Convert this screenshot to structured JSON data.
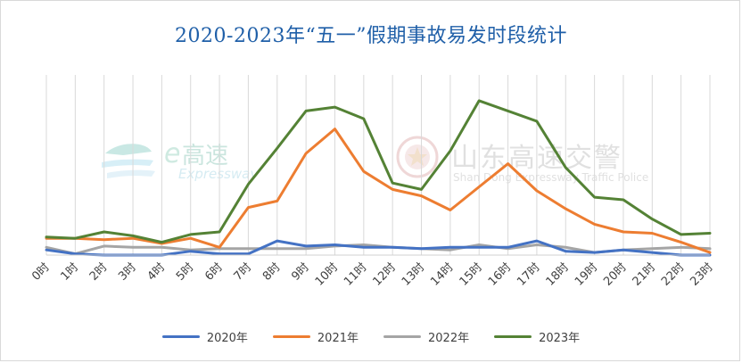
{
  "chart_data": {
    "type": "line",
    "title": "2020-2023年“五一”假期事故易发时段统计",
    "categories": [
      "0时",
      "1时",
      "2时",
      "3时",
      "4时",
      "5时",
      "6时",
      "7时",
      "8时",
      "9时",
      "10时",
      "11时",
      "12时",
      "13时",
      "14时",
      "15时",
      "16时",
      "17时",
      "18时",
      "19时",
      "20时",
      "21时",
      "22时",
      "23时"
    ],
    "series": [
      {
        "name": "2020年",
        "color": "#4472c4",
        "values": [
          4,
          1,
          0,
          0,
          0,
          3,
          1,
          1,
          11,
          7,
          8,
          6,
          6,
          5,
          6,
          6,
          6,
          11,
          3,
          2,
          4,
          2,
          0,
          0
        ]
      },
      {
        "name": "2021年",
        "color": "#ed7d31",
        "values": [
          13,
          13,
          12,
          13,
          9,
          13,
          6,
          37,
          42,
          79,
          98,
          65,
          51,
          46,
          35,
          53,
          71,
          50,
          36,
          24,
          18,
          17,
          10,
          2
        ]
      },
      {
        "name": "2022年",
        "color": "#a5a5a5",
        "values": [
          6,
          1,
          7,
          6,
          6,
          4,
          5,
          5,
          5,
          5,
          7,
          8,
          6,
          5,
          4,
          8,
          5,
          8,
          6,
          2,
          4,
          5,
          6,
          5
        ]
      },
      {
        "name": "2023年",
        "color": "#548235",
        "values": [
          14,
          13,
          18,
          15,
          10,
          16,
          18,
          55,
          83,
          112,
          115,
          106,
          56,
          51,
          81,
          120,
          112,
          104,
          68,
          45,
          43,
          28,
          16,
          17
        ]
      }
    ],
    "ylim": [
      0,
      140
    ],
    "grid": "vertical",
    "legend": "bottom"
  },
  "watermarks": {
    "left_brand": "高速",
    "left_brand_sub": "Expressway",
    "right_brand": "山东高速交警",
    "right_brand_sub": "Shan Dong Expressway Traffic Police"
  }
}
